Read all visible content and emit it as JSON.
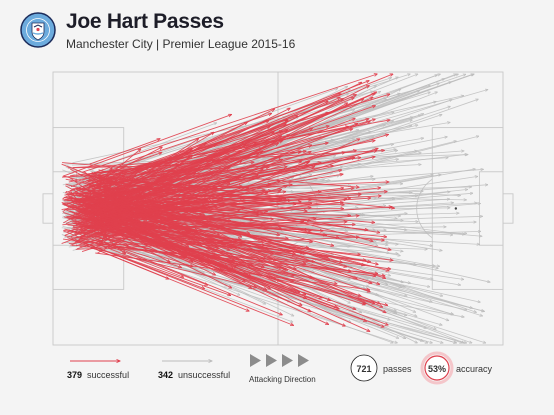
{
  "header": {
    "title": "Joe Hart Passes",
    "subtitle": "Manchester City | Premier League 2015-16",
    "badge_text": "MANCHESTER CITY"
  },
  "colors": {
    "successful": "#e0404e",
    "unsuccessful": "#bdbdbd",
    "pitch_lines": "#c8c8c8",
    "background": "#f4f4f4",
    "crest_blue": "#6cabdd",
    "crest_navy": "#1c2c5b"
  },
  "legend": {
    "successful_count": "379",
    "successful_label": "successful",
    "unsuccessful_count": "342",
    "unsuccessful_label": "unsuccessful",
    "direction_label": "Attacking Direction",
    "passes_value": "721",
    "passes_label": "passes",
    "accuracy_value": "53%",
    "accuracy_label": "accuracy"
  },
  "chart_data": {
    "type": "pass-map",
    "title": "Joe Hart Passes",
    "subtitle": "Manchester City | Premier League 2015-16",
    "attacking_direction": "left-to-right",
    "pitch": {
      "length_m": 105,
      "width_m": 68
    },
    "origin_zone_m": {
      "x": [
        2,
        12
      ],
      "y": [
        22,
        46
      ]
    },
    "series": [
      {
        "name": "successful",
        "count": 379,
        "end_x_range_m": [
          10,
          80
        ],
        "color": "#e0404e"
      },
      {
        "name": "unsuccessful",
        "count": 342,
        "end_x_range_m": [
          35,
          102
        ],
        "color": "#bdbdbd"
      }
    ],
    "totals": {
      "passes": 721,
      "accuracy_pct": 53
    }
  }
}
